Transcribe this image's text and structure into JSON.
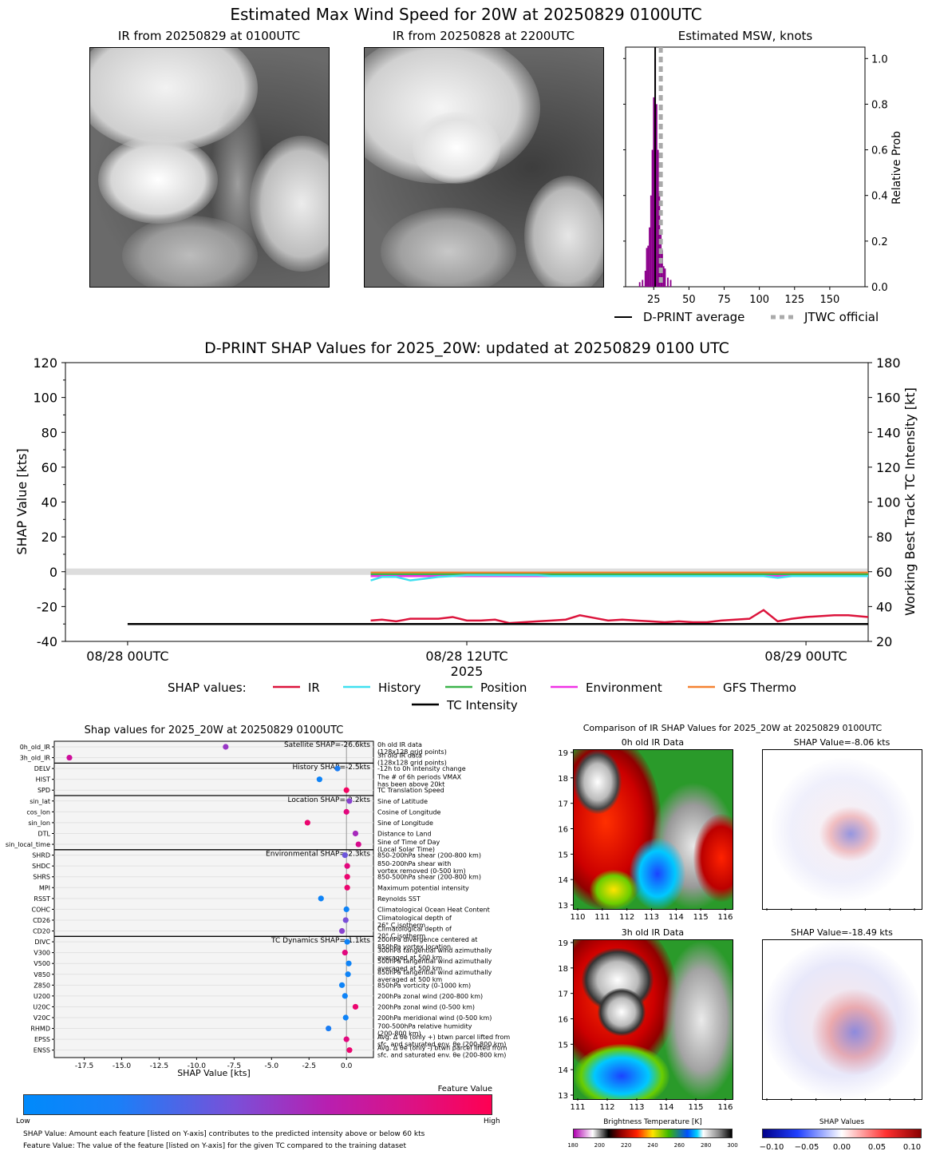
{
  "top": {
    "title": "Estimated Max Wind Speed for 20W at 20250829 0100UTC",
    "ir_now_title": "IR from 20250829 at 0100UTC",
    "ir_prev_title": "IR from 20250828 at 2200UTC",
    "msw_title": "Estimated MSW, knots",
    "msw_ylabel": "Relative Prob",
    "msw_legend_dprint": "D-PRINT average",
    "msw_legend_jtwc": "JTWC official"
  },
  "shap_ts": {
    "title": "D-PRINT SHAP Values for 2025_20W: updated at 20250829 0100 UTC",
    "ylabel_left": "SHAP Value [kts]",
    "ylabel_right": "Working Best Track TC Intensity [kt]",
    "year_label": "2025",
    "legend_title": "SHAP values:",
    "legend": [
      {
        "name": "IR",
        "color": "#dc143c"
      },
      {
        "name": "History",
        "color": "#40e0f0"
      },
      {
        "name": "Position",
        "color": "#3cb44b"
      },
      {
        "name": "Environment",
        "color": "#f032e6"
      },
      {
        "name": "GFS Thermo",
        "color": "#f58231"
      },
      {
        "name": "TC Intensity",
        "color": "#000000"
      }
    ]
  },
  "feature_plot": {
    "title": "Shap values for 2025_20W at 20250829 0100UTC",
    "xlabel": "SHAP Value [kts]",
    "group_labels": [
      "Satellite SHAP=-26.6kts",
      "History SHAP=-2.5kts",
      "Location SHAP=-2.2kts",
      "Environmental SHAP=-2.3kts",
      "TC Dynamics SHAP=-1.1kts"
    ],
    "features": [
      {
        "name": "0h_old_IR",
        "desc": "0h old IR data\n(128x128 grid points)"
      },
      {
        "name": "3h_old_IR",
        "desc": "3h old IR data\n(128x128 grid points)"
      },
      {
        "name": "DELV",
        "desc": "-12h to 0h intensity change"
      },
      {
        "name": "HIST",
        "desc": "The # of 6h periods VMAX\nhas been above 20kt"
      },
      {
        "name": "SPD",
        "desc": "TC Translation Speed"
      },
      {
        "name": "sin_lat",
        "desc": "Sine of Latitude"
      },
      {
        "name": "cos_lon",
        "desc": "Cosine of Longitude"
      },
      {
        "name": "sin_lon",
        "desc": "Sine of Longitude"
      },
      {
        "name": "DTL",
        "desc": "Distance to Land"
      },
      {
        "name": "sin_local_time",
        "desc": "Sine of Time of Day\n(Local Solar Time)"
      },
      {
        "name": "SHRD",
        "desc": "850-200hPa shear (200-800 km)"
      },
      {
        "name": "SHDC",
        "desc": "850-200hPa shear with\nvortex removed (0-500 km)"
      },
      {
        "name": "SHRS",
        "desc": "850-500hPa shear (200-800 km)"
      },
      {
        "name": "MPI",
        "desc": "Maximum potential intensity"
      },
      {
        "name": "RSST",
        "desc": "Reynolds SST"
      },
      {
        "name": "COHC",
        "desc": "Climatological Ocean Heat Content"
      },
      {
        "name": "CD26",
        "desc": "Climatological depth of\n26° C isotherm"
      },
      {
        "name": "CD20",
        "desc": "Climatological depth of\n20° C isotherm"
      },
      {
        "name": "DIVC",
        "desc": "200hPa divergence centered at\n850hPa vortex location"
      },
      {
        "name": "V300",
        "desc": "300hPa tangential wind azimuthally\naveraged at 500 km"
      },
      {
        "name": "V500",
        "desc": "500hPa tangential wind azimuthally\naveraged at 500 km"
      },
      {
        "name": "V850",
        "desc": "850hPa tangential wind azimuthally\naveraged at 500 km"
      },
      {
        "name": "Z850",
        "desc": "850hPa vorticity (0-1000 km)"
      },
      {
        "name": "U200",
        "desc": "200hPa zonal wind (200-800 km)"
      },
      {
        "name": "U20C",
        "desc": "200hPa zonal wind (0-500 km)"
      },
      {
        "name": "V20C",
        "desc": "200hPa meridional wind (0-500 km)"
      },
      {
        "name": "RHMD",
        "desc": "700-500hPa relative humidity\n(200-800 km)"
      },
      {
        "name": "EPSS",
        "desc": "Avg. Δ θe (only +) btwn parcel lifted from\nsfc. and saturated env. θe (200-800 km)"
      },
      {
        "name": "ENSS",
        "desc": "Avg. Δ θe (only -) btwn parcel lifted from\nsfc. and saturated env. θe (200-800 km)"
      }
    ],
    "colorbar_title": "Feature Value",
    "colorbar_low": "Low",
    "colorbar_high": "High",
    "footnote1": "SHAP Value: Amount each feature [listed on Y-axis] contributes to the predicted intensity above or below 60 kts",
    "footnote2": "Feature Value: The value of the feature [listed on Y-axis] for the given TC compared to the training dataset"
  },
  "ir_compare": {
    "title": "Comparison of IR SHAP Values for 2025_20W at 20250829 0100UTC",
    "panel_0h": "0h old IR Data",
    "panel_3h": "3h old IR Data",
    "shap_0h": "SHAP Value=-8.06 kts",
    "shap_3h": "SHAP Value=-18.49 kts",
    "bt_label": "Brightness Temperature [K]",
    "shap_label": "SHAP Values"
  },
  "chart_data": [
    {
      "type": "bar",
      "title": "Estimated MSW, knots",
      "ylabel": "Relative Prob",
      "xlim": [
        5,
        175
      ],
      "ylim": [
        0,
        1.05
      ],
      "x_ticks": [
        25,
        50,
        75,
        100,
        125,
        150
      ],
      "y_ticks": [
        "0.0",
        "0.2",
        "0.4",
        "0.6",
        "0.8",
        "1.0"
      ],
      "bins": [
        15,
        17,
        19,
        20,
        21,
        22,
        23,
        24,
        25,
        26,
        27,
        28,
        29,
        30,
        31,
        32,
        33,
        35,
        37
      ],
      "values": [
        0.02,
        0.03,
        0.07,
        0.17,
        0.18,
        0.26,
        0.4,
        0.6,
        0.83,
        1.0,
        0.8,
        0.6,
        0.41,
        0.25,
        0.16,
        0.09,
        0.08,
        0.04,
        0.03
      ],
      "dprint_average": 26,
      "jtwc_official": 30
    },
    {
      "type": "line",
      "title": "D-PRINT SHAP Values for 2025_20W: updated at 20250829 0100 UTC",
      "xlabel": "2025",
      "x_ticks": [
        "08/28 00UTC",
        "08/28 12UTC",
        "08/29 00UTC"
      ],
      "y_left": [
        -40,
        120
      ],
      "y_left_ticks": [
        -40,
        -20,
        0,
        20,
        40,
        60,
        80,
        100,
        120
      ],
      "y_right": [
        20,
        180
      ],
      "y_right_ticks": [
        20,
        40,
        60,
        80,
        100,
        120,
        140,
        160,
        180
      ],
      "x_hours": [
        8.6,
        9,
        9.5,
        10,
        10.5,
        11,
        11.5,
        12,
        12.5,
        13,
        13.5,
        14,
        14.5,
        15,
        15.5,
        16,
        16.5,
        17,
        17.5,
        18,
        18.5,
        19,
        19.5,
        20,
        20.5,
        21,
        21.5,
        22,
        22.5,
        23,
        23.5,
        24,
        24.5,
        25,
        25.5,
        26.2
      ],
      "series": [
        {
          "name": "IR",
          "values": [
            -28,
            -27.5,
            -28.5,
            -27,
            -27,
            -27,
            -26,
            -28,
            -28,
            -27.5,
            -29.5,
            -29,
            -28.5,
            -28,
            -27.5,
            -25,
            -26.5,
            -28,
            -27.5,
            -28,
            -28.5,
            -29,
            -28.5,
            -29,
            -29,
            -28,
            -27.5,
            -27,
            -22,
            -28.5,
            -27,
            -26,
            -25.5,
            -25,
            -25,
            -26
          ]
        },
        {
          "name": "History",
          "values": [
            -5,
            -3,
            -3,
            -5,
            -4,
            -3,
            -2.5,
            -2,
            -2,
            -2,
            -2,
            -2,
            -2,
            -2.5,
            -2.5,
            -2.5,
            -2.5,
            -2.5,
            -2.5,
            -2.5,
            -2.5,
            -2.5,
            -2.5,
            -2.5,
            -2.5,
            -2.5,
            -2.5,
            -2.5,
            -2.5,
            -3.5,
            -2.5,
            -2.5,
            -2.5,
            -2.5,
            -2.5,
            -2.5
          ]
        },
        {
          "name": "Position",
          "values": [
            -1.5,
            -1.5,
            -1.5,
            -1.5,
            -1.5,
            -1.5,
            -1.5,
            -1.5,
            -1.5,
            -1.5,
            -1.5,
            -1.5,
            -1.5,
            -1.5,
            -1.5,
            -1.5,
            -1.5,
            -1.5,
            -1.5,
            -1.5,
            -1.5,
            -1.5,
            -1.5,
            -1.5,
            -1.5,
            -1.5,
            -1.5,
            -1.5,
            -1.5,
            -1.5,
            -1.5,
            -1.5,
            -1.5,
            -1.5,
            -1.5,
            -1.5
          ]
        },
        {
          "name": "Environment",
          "values": [
            -2.5,
            -2.5,
            -2.5,
            -2.5,
            -2.5,
            -2.5,
            -2.5,
            -2.5,
            -2.5,
            -2.5,
            -2.5,
            -2.5,
            -2.5,
            -2.5,
            -2.5,
            -2.5,
            -2.5,
            -2.5,
            -2.5,
            -2.5,
            -2.5,
            -2.5,
            -2.5,
            -2.5,
            -2.5,
            -2.5,
            -2.5,
            -2.5,
            -2.5,
            -2.5,
            -2.5,
            -2.5,
            -2.5,
            -2.5,
            -2.5,
            -2.5
          ]
        },
        {
          "name": "GFS Thermo",
          "values": [
            -0.5,
            -0.5,
            -0.5,
            -0.5,
            -0.5,
            -0.5,
            -0.5,
            -0.5,
            -0.5,
            -0.5,
            -0.5,
            -0.5,
            -0.5,
            -0.5,
            -0.5,
            -0.5,
            -0.5,
            -0.5,
            -0.5,
            -0.5,
            -0.5,
            -0.5,
            -0.5,
            -0.5,
            -0.5,
            -0.5,
            -0.5,
            -0.5,
            -0.5,
            -0.5,
            -0.5,
            -0.5,
            -0.5,
            -0.5,
            -0.5,
            -0.5
          ]
        }
      ],
      "tc_intensity": {
        "name": "TC Intensity",
        "x_hours": [
          0,
          26.2
        ],
        "values": [
          30,
          30
        ]
      }
    },
    {
      "type": "scatter",
      "title": "Shap values for 2025_20W at 20250829 0100UTC",
      "xlabel": "SHAP Value [kts]",
      "xlim": [
        -19.5,
        1.8
      ],
      "x_ticks": [
        "-17.5",
        "-15.0",
        "-12.5",
        "-10.0",
        "-7.5",
        "-5.0",
        "-2.5",
        "0.0"
      ],
      "points": [
        {
          "feature": "0h_old_IR",
          "shap": -8.06,
          "feature_value": 0.55
        },
        {
          "feature": "3h_old_IR",
          "shap": -18.49,
          "feature_value": 0.75
        },
        {
          "feature": "DELV",
          "shap": -0.6,
          "feature_value": 0.1
        },
        {
          "feature": "HIST",
          "shap": -1.8,
          "feature_value": 0.05
        },
        {
          "feature": "SPD",
          "shap": 0.0,
          "feature_value": 0.95
        },
        {
          "feature": "sin_lat",
          "shap": 0.2,
          "feature_value": 0.5
        },
        {
          "feature": "cos_lon",
          "shap": 0.0,
          "feature_value": 0.85
        },
        {
          "feature": "sin_lon",
          "shap": -2.6,
          "feature_value": 0.9
        },
        {
          "feature": "DTL",
          "shap": 0.6,
          "feature_value": 0.6
        },
        {
          "feature": "sin_local_time",
          "shap": 0.8,
          "feature_value": 0.8
        },
        {
          "feature": "SHRD",
          "shap": -0.1,
          "feature_value": 0.4
        },
        {
          "feature": "SHDC",
          "shap": 0.05,
          "feature_value": 0.85
        },
        {
          "feature": "SHRS",
          "shap": 0.05,
          "feature_value": 0.9
        },
        {
          "feature": "MPI",
          "shap": 0.05,
          "feature_value": 0.9
        },
        {
          "feature": "RSST",
          "shap": -1.7,
          "feature_value": 0.05
        },
        {
          "feature": "COHC",
          "shap": 0.0,
          "feature_value": 0.05
        },
        {
          "feature": "CD26",
          "shap": -0.05,
          "feature_value": 0.45
        },
        {
          "feature": "CD20",
          "shap": -0.3,
          "feature_value": 0.5
        },
        {
          "feature": "DIVC",
          "shap": 0.05,
          "feature_value": 0.05
        },
        {
          "feature": "V300",
          "shap": -0.1,
          "feature_value": 0.85
        },
        {
          "feature": "V500",
          "shap": 0.15,
          "feature_value": 0.05
        },
        {
          "feature": "V850",
          "shap": 0.1,
          "feature_value": 0.05
        },
        {
          "feature": "Z850",
          "shap": -0.3,
          "feature_value": 0.05
        },
        {
          "feature": "U200",
          "shap": -0.1,
          "feature_value": 0.05
        },
        {
          "feature": "U20C",
          "shap": 0.6,
          "feature_value": 0.9
        },
        {
          "feature": "V20C",
          "shap": -0.05,
          "feature_value": 0.05
        },
        {
          "feature": "RHMD",
          "shap": -1.2,
          "feature_value": 0.1
        },
        {
          "feature": "EPSS",
          "shap": 0.0,
          "feature_value": 0.85
        },
        {
          "feature": "ENSS",
          "shap": 0.2,
          "feature_value": 0.9
        }
      ]
    },
    {
      "type": "heatmap",
      "title": "Comparison of IR SHAP Values for 2025_20W at 20250829 0100UTC",
      "panels": [
        "0h old IR Data",
        "SHAP Value=-8.06 kts",
        "3h old IR Data",
        "SHAP Value=-18.49 kts"
      ],
      "ir_x_ticks": [
        "110",
        "111",
        "112",
        "113",
        "114",
        "115",
        "116"
      ],
      "ir_y_ticks": [
        "13",
        "14",
        "15",
        "16",
        "17",
        "18",
        "19"
      ],
      "ir3_x_ticks": [
        "111",
        "112",
        "113",
        "114",
        "115",
        "116"
      ],
      "bt_ticks": [
        "180",
        "200",
        "220",
        "240",
        "260",
        "280",
        "300"
      ],
      "shap_ticks": [
        "−0.10",
        "−0.05",
        "0.00",
        "0.05",
        "0.10"
      ]
    }
  ]
}
